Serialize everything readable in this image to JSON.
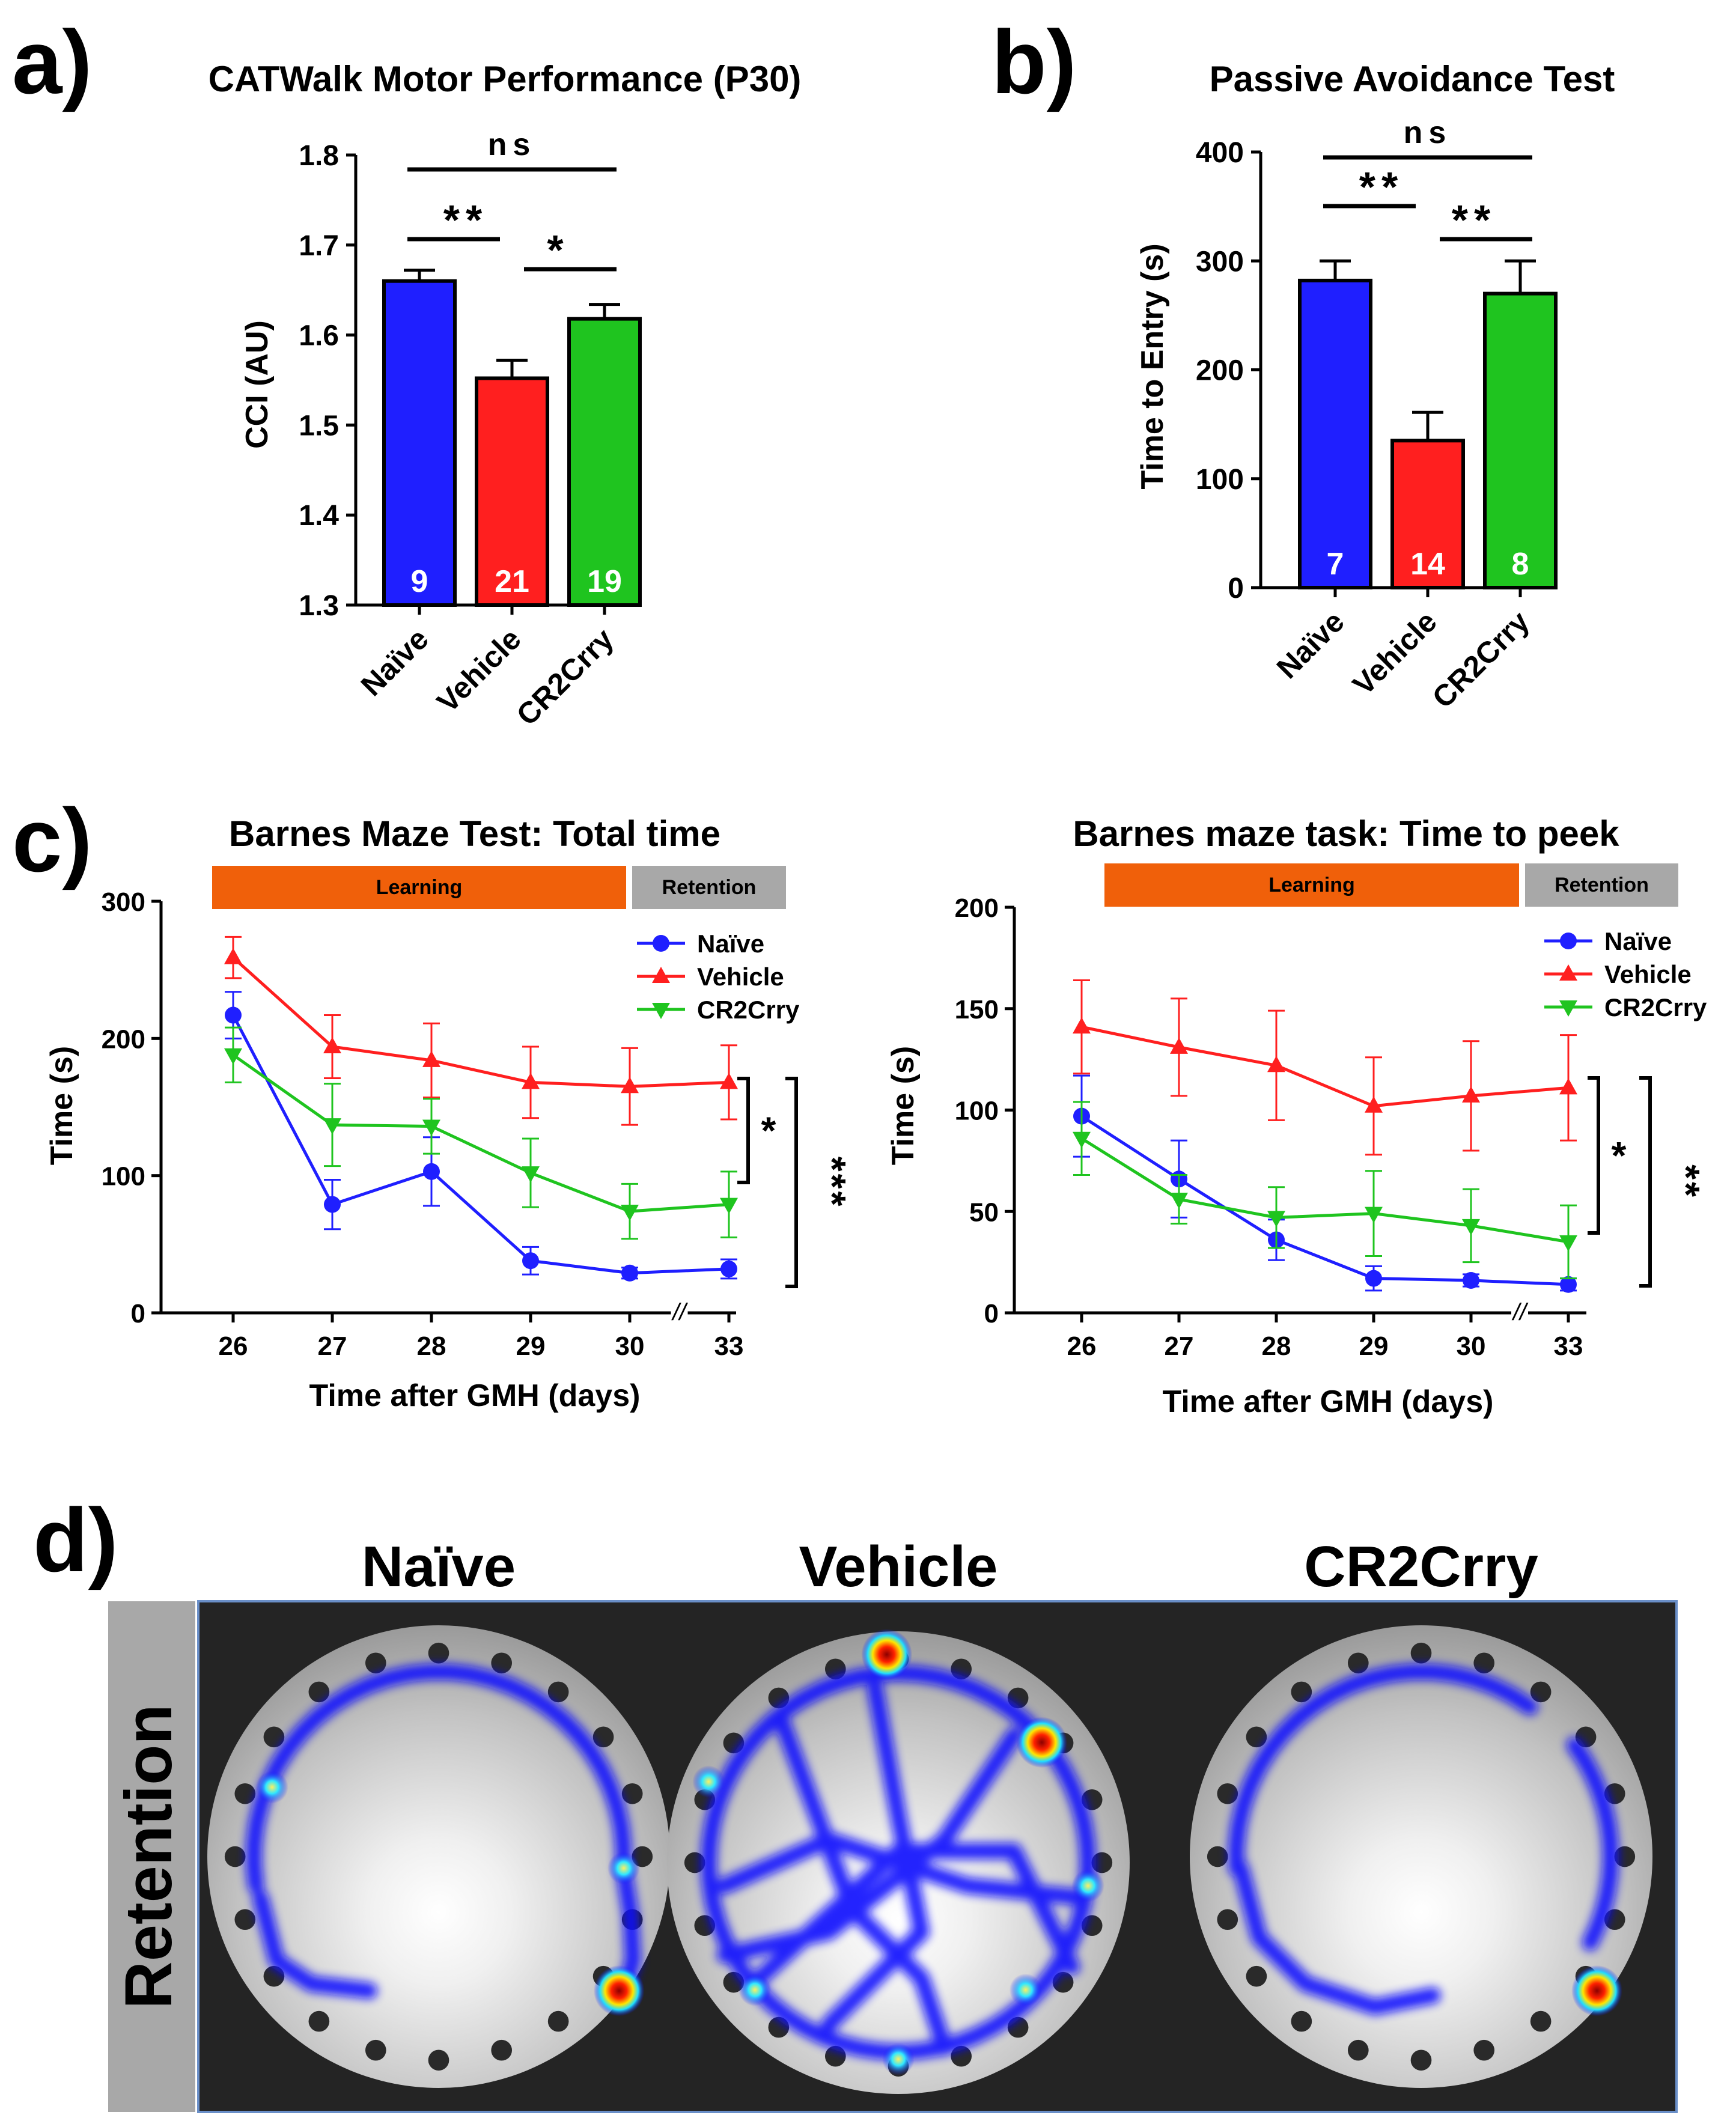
{
  "panels": {
    "a": "a)",
    "b": "b)",
    "c": "c)",
    "d": "d)"
  },
  "colors": {
    "naive": "#1f1fff",
    "vehicle": "#ff1f1f",
    "cr2crry": "#1fc41f",
    "learning": "#f0600a",
    "retention": "#a8a8a8"
  },
  "chart_data": [
    {
      "type": "bar",
      "title": "CATWalk Motor Performance (P30)",
      "ylabel": "CCI  (AU)",
      "xlabel": "",
      "ylim": [
        1.3,
        1.8
      ],
      "yticks": [
        "1.3",
        "1.4",
        "1.5",
        "1.6",
        "1.7",
        "1.8"
      ],
      "categories": [
        "Naïve",
        "Vehicle",
        "CR2Crry"
      ],
      "values": [
        1.66,
        1.552,
        1.618
      ],
      "errors": [
        0.012,
        0.02,
        0.016
      ],
      "n_labels": [
        "9",
        "21",
        "19"
      ],
      "significance": [
        {
          "from": 0,
          "to": 1,
          "label": "**"
        },
        {
          "from": 1,
          "to": 2,
          "label": "*"
        },
        {
          "from": 0,
          "to": 2,
          "label": "ns"
        }
      ]
    },
    {
      "type": "bar",
      "title": "Passive Avoidance Test",
      "ylabel": "Time to Entry (s)",
      "xlabel": "",
      "ylim": [
        0,
        400
      ],
      "yticks": [
        "0",
        "100",
        "200",
        "300",
        "400"
      ],
      "categories": [
        "Naïve",
        "Vehicle",
        "CR2Crry"
      ],
      "values": [
        282,
        135,
        270
      ],
      "errors": [
        18,
        26,
        30
      ],
      "n_labels": [
        "7",
        "14",
        "8"
      ],
      "significance": [
        {
          "from": 0,
          "to": 1,
          "label": "**"
        },
        {
          "from": 1,
          "to": 2,
          "label": "**"
        },
        {
          "from": 0,
          "to": 2,
          "label": "ns"
        }
      ]
    },
    {
      "type": "line",
      "title": "Barnes Maze Test: Total time",
      "ylabel": "Time (s)",
      "xlabel": "Time after GMH (days)",
      "ylim": [
        0,
        300
      ],
      "yticks": [
        "0",
        "100",
        "200",
        "300"
      ],
      "x": [
        "26",
        "27",
        "28",
        "29",
        "30",
        "33"
      ],
      "axis_break": "//",
      "phases": {
        "learning": "Learning",
        "retention": "Retention"
      },
      "legend": "top-right",
      "series": [
        {
          "name": "Naïve",
          "key": "naive",
          "marker": "circle",
          "values": [
            217,
            79,
            103,
            38,
            29,
            32
          ],
          "errors": [
            17,
            18,
            25,
            10,
            4,
            7
          ]
        },
        {
          "name": "Vehicle",
          "key": "vehicle",
          "marker": "triangle-up",
          "values": [
            259,
            194,
            184,
            168,
            165,
            168
          ],
          "errors": [
            15,
            23,
            27,
            26,
            28,
            27
          ]
        },
        {
          "name": "CR2Crry",
          "key": "cr2crry",
          "marker": "triangle-down",
          "values": [
            188,
            137,
            136,
            102,
            74,
            79
          ],
          "errors": [
            20,
            30,
            20,
            25,
            20,
            24
          ]
        }
      ],
      "significance": [
        {
          "pair": "Vehicle vs CR2Crry",
          "label": "*"
        },
        {
          "pair": "Vehicle vs Naïve",
          "label": "***"
        }
      ]
    },
    {
      "type": "line",
      "title": "Barnes maze task: Time to peek",
      "ylabel": "Time (s)",
      "xlabel": "Time after GMH (days)",
      "ylim": [
        0,
        200
      ],
      "yticks": [
        "0",
        "50",
        "100",
        "150",
        "200"
      ],
      "x": [
        "26",
        "27",
        "28",
        "29",
        "30",
        "33"
      ],
      "axis_break": "//",
      "phases": {
        "learning": "Learning",
        "retention": "Retention"
      },
      "legend": "top-right",
      "series": [
        {
          "name": "Naïve",
          "key": "naive",
          "marker": "circle",
          "values": [
            97,
            66,
            36,
            17,
            16,
            14
          ],
          "errors": [
            20,
            19,
            10,
            6,
            3,
            3
          ]
        },
        {
          "name": "Vehicle",
          "key": "vehicle",
          "marker": "triangle-up",
          "values": [
            141,
            131,
            122,
            102,
            107,
            111
          ],
          "errors": [
            23,
            24,
            27,
            24,
            27,
            26
          ]
        },
        {
          "name": "CR2Crry",
          "key": "cr2crry",
          "marker": "triangle-down",
          "values": [
            86,
            56,
            47,
            49,
            43,
            35
          ],
          "errors": [
            18,
            12,
            15,
            21,
            18,
            18
          ]
        }
      ],
      "significance": [
        {
          "pair": "Vehicle vs CR2Crry",
          "label": "*"
        },
        {
          "pair": "Vehicle vs Naïve",
          "label": "**"
        }
      ]
    }
  ],
  "heatmaps": {
    "row_label": "Retention",
    "columns": [
      "Naïve",
      "Vehicle",
      "CR2Crry"
    ]
  }
}
